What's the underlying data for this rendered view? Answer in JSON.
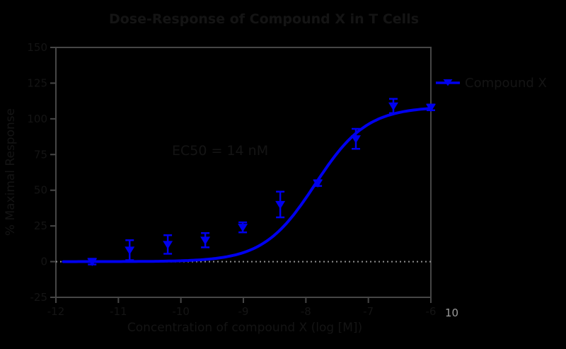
{
  "figure": {
    "title": "Dose-Response of Compound X in T Cells",
    "colors": {
      "background": "#000000",
      "frame": "#464646",
      "text-dark": "#141414",
      "accent-blue": "#0000EE",
      "baseline-gray": "#8f8f8f",
      "artifact-gray": "#9b9b9b"
    }
  },
  "annotation": {
    "ec50": "EC50 = 14 nM"
  },
  "legend": {
    "series_label": "Compound X"
  },
  "x_axis": {
    "label": "Concentration of compound X (log [M])",
    "tick_labels": [
      "-12",
      "-11",
      "-10",
      "-9",
      "-8",
      "-7",
      "-6"
    ],
    "tick_values": [
      -12,
      -11,
      -10,
      -9,
      -8,
      -7,
      -6
    ],
    "end_fragment": "10"
  },
  "y_axis": {
    "label": "% Maximal Response",
    "tick_labels": [
      "-25",
      "0",
      "25",
      "50",
      "75",
      "100",
      "125",
      "150"
    ],
    "tick_values": [
      -25,
      0,
      25,
      50,
      75,
      100,
      125,
      150
    ]
  },
  "chart_data": {
    "type": "scatter",
    "title": "Dose-Response of Compound X in T Cells",
    "xlabel": "Concentration of compound X (log [M])",
    "ylabel": "% Maximal Response",
    "xlim": [
      -12,
      -6
    ],
    "ylim": [
      -25,
      150
    ],
    "grid": false,
    "legend_position": "right-outside",
    "baseline": {
      "y": 0,
      "style": "dotted"
    },
    "x_log_molar": [
      -11.42,
      -10.82,
      -10.21,
      -9.61,
      -9.01,
      -8.41,
      -7.81,
      -7.2,
      -6.6,
      -6.0
    ],
    "series": [
      {
        "name": "Compound X",
        "marker": "triangle-down",
        "color": "#0000EE",
        "values": [
          0,
          8,
          12,
          15,
          24,
          40,
          55,
          86,
          109,
          108
        ],
        "sem": [
          2,
          7,
          6.5,
          5,
          3.5,
          9,
          2,
          7,
          5,
          2
        ]
      }
    ],
    "fit_curve": {
      "model": "4PL",
      "bottom": 0,
      "top": 108.5,
      "log_ec50": -7.85,
      "hill": 1.05
    }
  }
}
